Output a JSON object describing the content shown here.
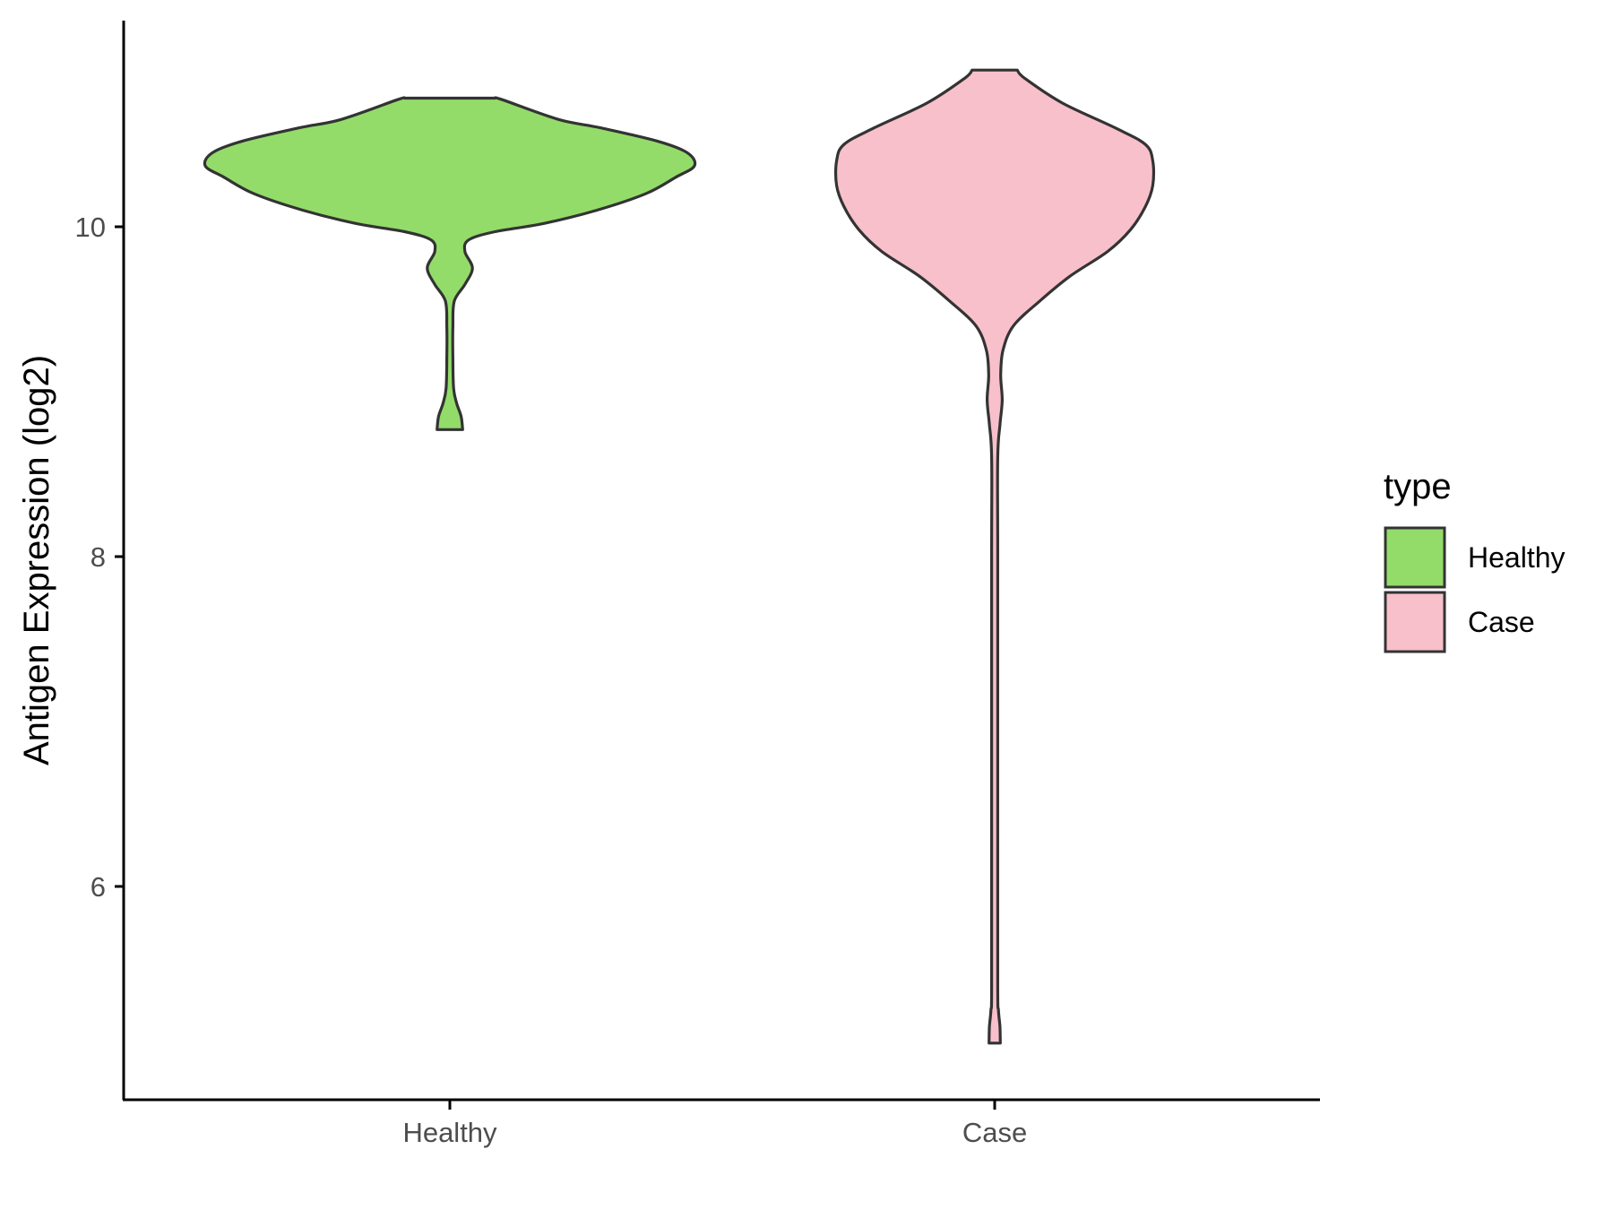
{
  "chart_data": {
    "type": "violin",
    "title": "",
    "xlabel": "",
    "ylabel": "Antigen Expression (log2)",
    "categories": [
      "Healthy",
      "Case"
    ],
    "yticks": [
      6,
      8,
      10
    ],
    "ylim": [
      4.7,
      11.25
    ],
    "legend": {
      "title": "type",
      "placement": "right"
    },
    "series": [
      {
        "name": "Healthy",
        "color": "#93dc6a",
        "profile": [
          [
            8.77,
            0.034
          ],
          [
            8.85,
            0.03
          ],
          [
            8.93,
            0.018
          ],
          [
            9.02,
            0.01
          ],
          [
            9.2,
            0.008
          ],
          [
            9.4,
            0.008
          ],
          [
            9.55,
            0.012
          ],
          [
            9.65,
            0.04
          ],
          [
            9.75,
            0.06
          ],
          [
            9.85,
            0.04
          ],
          [
            9.92,
            0.05
          ],
          [
            9.97,
            0.12
          ],
          [
            10.02,
            0.25
          ],
          [
            10.1,
            0.39
          ],
          [
            10.2,
            0.52
          ],
          [
            10.3,
            0.6
          ],
          [
            10.37,
            0.65
          ],
          [
            10.45,
            0.63
          ],
          [
            10.52,
            0.55
          ],
          [
            10.6,
            0.4
          ],
          [
            10.65,
            0.29
          ],
          [
            10.77,
            0.14
          ],
          [
            10.78,
            0.12
          ]
        ]
      },
      {
        "name": "Case",
        "color": "#f8c0cb",
        "profile": [
          [
            5.05,
            0.015
          ],
          [
            5.15,
            0.014
          ],
          [
            5.25,
            0.01
          ],
          [
            5.4,
            0.008
          ],
          [
            6.5,
            0.008
          ],
          [
            8.0,
            0.008
          ],
          [
            8.6,
            0.008
          ],
          [
            8.8,
            0.014
          ],
          [
            8.95,
            0.02
          ],
          [
            9.1,
            0.016
          ],
          [
            9.25,
            0.022
          ],
          [
            9.4,
            0.05
          ],
          [
            9.55,
            0.12
          ],
          [
            9.7,
            0.2
          ],
          [
            9.85,
            0.3
          ],
          [
            9.98,
            0.36
          ],
          [
            10.12,
            0.4
          ],
          [
            10.25,
            0.42
          ],
          [
            10.4,
            0.42
          ],
          [
            10.5,
            0.4
          ],
          [
            10.6,
            0.32
          ],
          [
            10.75,
            0.18
          ],
          [
            10.9,
            0.08
          ],
          [
            10.95,
            0.06
          ]
        ]
      }
    ]
  }
}
